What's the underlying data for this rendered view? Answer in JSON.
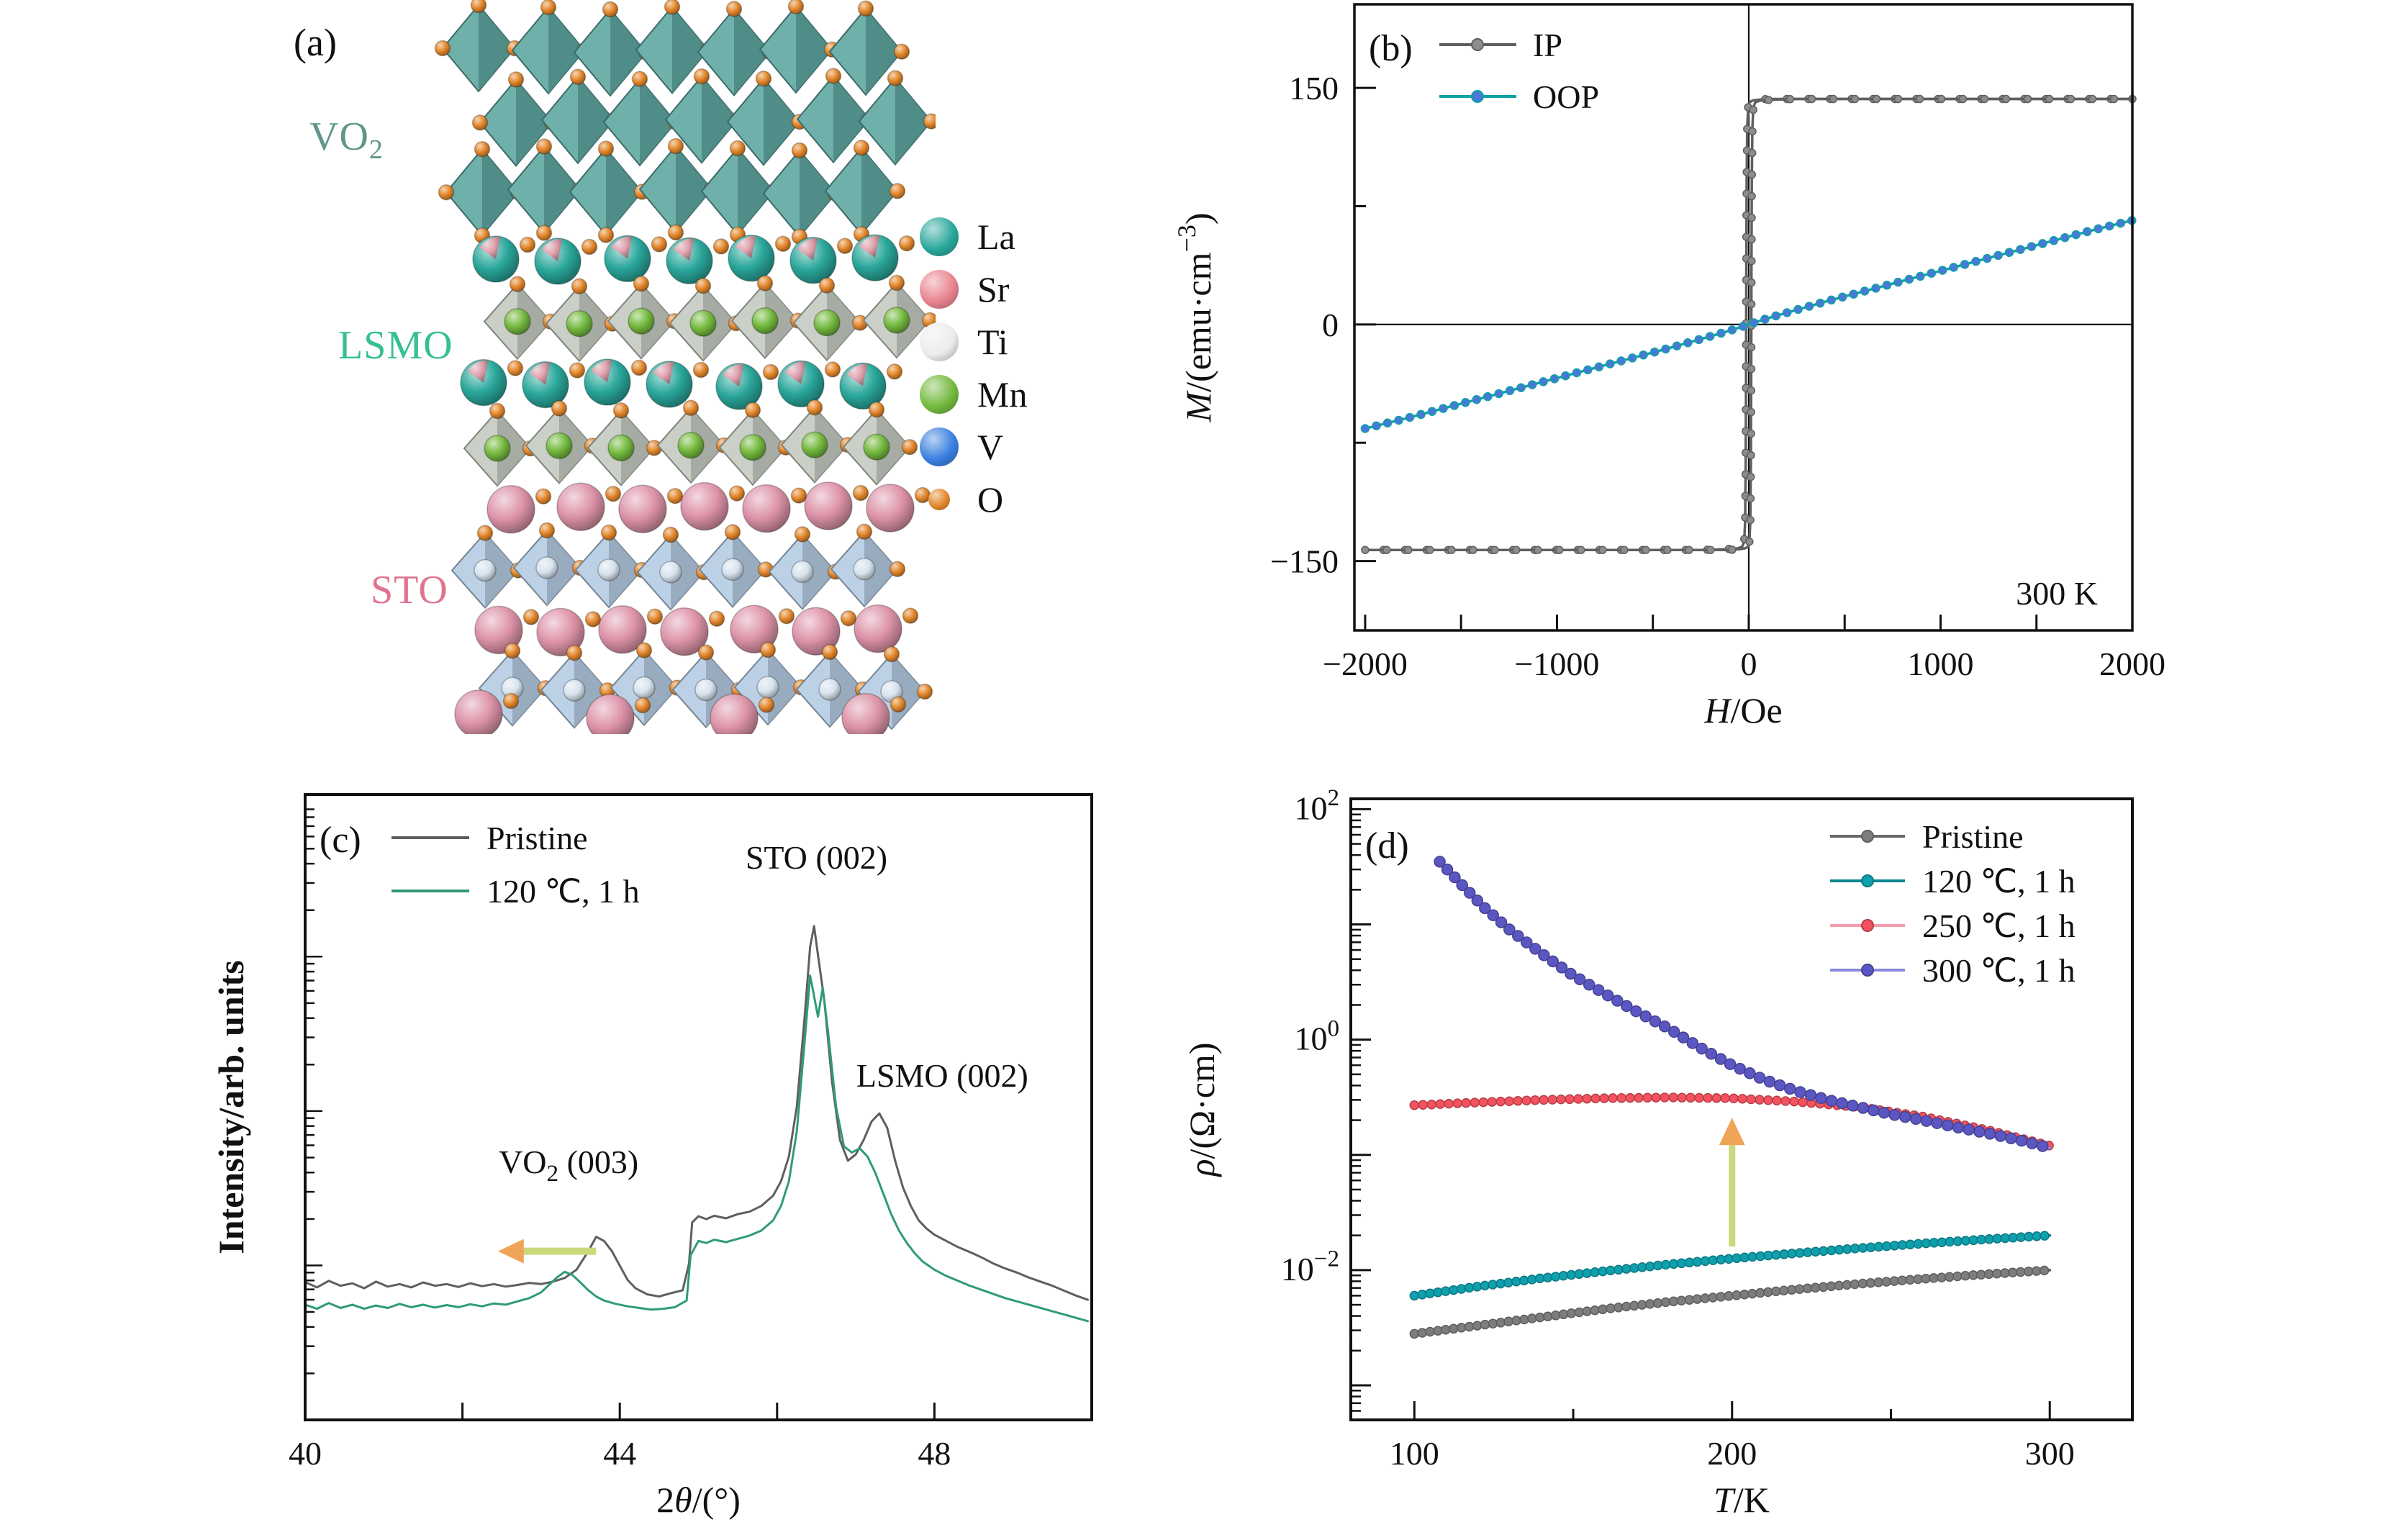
{
  "panel_a": {
    "label": "(a)",
    "layers": [
      {
        "label_main": "VO",
        "label_sub": "2",
        "color": "#5f958b"
      },
      {
        "label_main": "LSMO",
        "label_sub": "",
        "color": "#35bf94"
      },
      {
        "label_main": "STO",
        "label_sub": "",
        "color": "#e0748f"
      }
    ],
    "legend": [
      {
        "label": "La",
        "color": "#2aa79b"
      },
      {
        "label": "Sr",
        "color": "#e8838f"
      },
      {
        "label": "Ti",
        "color": "#ececec"
      },
      {
        "label": "Mn",
        "color": "#74b93e"
      },
      {
        "label": "V",
        "color": "#3a7fe0"
      },
      {
        "label": "O",
        "color": "#e2862a"
      }
    ],
    "structure_colors": {
      "vo2_octahedra": "#5ba5a0",
      "lsmo_octahedra": "#c3cabf",
      "sto_octahedra": "#b3cbe2",
      "la_sphere": "#2aa79b",
      "la_patch": "#e89aa8",
      "sr_sphere": "#dd93a8",
      "mn_sphere": "#74b93e",
      "ti_sphere": "#d7e3ee",
      "o_sphere": "#e2862a"
    }
  },
  "chart_data": [
    {
      "id": "b",
      "type": "line",
      "panel_label": "(b)",
      "xlabel_parts": [
        {
          "t": "H",
          "italic": true
        },
        {
          "t": "/Oe"
        }
      ],
      "ylabel_parts": [
        {
          "t": "M",
          "italic": true
        },
        {
          "t": "/(emu·cm"
        },
        {
          "t": "-3",
          "sup": true
        },
        {
          "t": ")"
        }
      ],
      "xlim": [
        -2056,
        2000
      ],
      "ylim": [
        -194,
        203
      ],
      "xticks": [
        -2000,
        -1000,
        0,
        1000,
        2000
      ],
      "xticks_minor": [
        -1500,
        -500,
        500,
        1500
      ],
      "yticks": [
        -150,
        0,
        150
      ],
      "yticks_minor": [
        -75,
        75
      ],
      "origin_lines": true,
      "annotation": {
        "text": "300 K"
      },
      "legend_position": "top-left",
      "series": [
        {
          "name": "IP",
          "color": "#5f5f5f",
          "marker_fill": "#8d8d8d",
          "marker_r": 5,
          "marker_step": 30,
          "branches": [
            [
              [
                2000,
                143
              ],
              [
                1600,
                143
              ],
              [
                1200,
                143
              ],
              [
                800,
                143
              ],
              [
                400,
                143
              ],
              [
                200,
                143
              ],
              [
                100,
                143
              ],
              [
                50,
                142.5
              ],
              [
                20,
                142
              ],
              [
                5,
                141
              ],
              [
                -3,
                138
              ],
              [
                -8,
                125
              ],
              [
                -11,
                90
              ],
              [
                -13,
                30
              ],
              [
                -14,
                -30
              ],
              [
                -16,
                -90
              ],
              [
                -19,
                -125
              ],
              [
                -24,
                -138
              ],
              [
                -35,
                -141
              ],
              [
                -60,
                -142
              ],
              [
                -120,
                -142.5
              ],
              [
                -250,
                -143
              ],
              [
                -500,
                -143
              ],
              [
                -1000,
                -143
              ],
              [
                -1500,
                -143
              ],
              [
                -2000,
                -143
              ]
            ],
            [
              [
                -2000,
                -143
              ],
              [
                -1600,
                -143
              ],
              [
                -1200,
                -143
              ],
              [
                -800,
                -143
              ],
              [
                -400,
                -143
              ],
              [
                -200,
                -143
              ],
              [
                -100,
                -143
              ],
              [
                -50,
                -142.5
              ],
              [
                -20,
                -142
              ],
              [
                -5,
                -141
              ],
              [
                3,
                -138
              ],
              [
                8,
                -125
              ],
              [
                11,
                -90
              ],
              [
                13,
                -30
              ],
              [
                14,
                30
              ],
              [
                16,
                90
              ],
              [
                19,
                125
              ],
              [
                24,
                138
              ],
              [
                35,
                141
              ],
              [
                60,
                142
              ],
              [
                120,
                142.5
              ],
              [
                250,
                143
              ],
              [
                500,
                143
              ],
              [
                1000,
                143
              ],
              [
                1500,
                143
              ],
              [
                2000,
                143
              ]
            ]
          ]
        },
        {
          "name": "OOP",
          "color": "#0fa3a3",
          "marker_fill": "#4679d8",
          "marker_r": 5.5,
          "marker_step": 16,
          "branches": [
            [
              [
                -2000,
                -66
              ],
              [
                -1800,
                -60
              ],
              [
                -1600,
                -53.5
              ],
              [
                -1400,
                -47
              ],
              [
                -1200,
                -40.5
              ],
              [
                -1000,
                -34
              ],
              [
                -800,
                -27.5
              ],
              [
                -600,
                -21
              ],
              [
                -400,
                -14.5
              ],
              [
                -300,
                -11
              ],
              [
                -200,
                -7.5
              ],
              [
                -100,
                -4
              ],
              [
                -50,
                -2
              ],
              [
                0,
                0
              ],
              [
                50,
                2
              ],
              [
                100,
                4
              ],
              [
                200,
                7.5
              ],
              [
                300,
                11
              ],
              [
                400,
                14.5
              ],
              [
                600,
                21
              ],
              [
                800,
                27.5
              ],
              [
                1000,
                34
              ],
              [
                1200,
                40.5
              ],
              [
                1400,
                47
              ],
              [
                1600,
                53.5
              ],
              [
                1800,
                60
              ],
              [
                2000,
                66
              ]
            ]
          ]
        }
      ]
    },
    {
      "id": "c",
      "type": "line",
      "panel_label": "(c)",
      "xlabel_parts": [
        {
          "t": "2"
        },
        {
          "t": "θ",
          "italic": true
        },
        {
          "t": "/(°)"
        }
      ],
      "ylabel": "Intensity/arb. units",
      "xlim": [
        40,
        50
      ],
      "ylim": [
        -20,
        132
      ],
      "xticks": [
        40,
        44,
        48
      ],
      "xticks_minor": [
        42,
        46
      ],
      "log_minor_yticks": true,
      "annotations": [
        {
          "parts": [
            {
              "t": "STO (002)"
            }
          ],
          "x": 46.5,
          "y": 114
        },
        {
          "parts": [
            {
              "t": "LSMO (002)"
            }
          ],
          "x": 48.1,
          "y": 61
        },
        {
          "parts": [
            {
              "t": "VO"
            },
            {
              "t": "2",
              "sub": true
            },
            {
              "t": " (003)"
            }
          ],
          "x": 43.35,
          "y": 40
        }
      ],
      "arrow": {
        "x_from": 43.7,
        "x_to": 42.45,
        "y": 21,
        "stem_color": "#ccd87c",
        "head_color": "#f0a458"
      },
      "legend_position": "top-left",
      "series": [
        {
          "name": "Pristine",
          "color": "#5f5f5f",
          "x": [
            40.0,
            40.15,
            40.3,
            40.45,
            40.6,
            40.75,
            40.9,
            41.05,
            41.2,
            41.35,
            41.5,
            41.65,
            41.8,
            41.95,
            42.1,
            42.25,
            42.4,
            42.55,
            42.7,
            42.85,
            43.0,
            43.15,
            43.3,
            43.45,
            43.6,
            43.7,
            43.8,
            43.9,
            44.0,
            44.1,
            44.2,
            44.35,
            44.5,
            44.65,
            44.8,
            44.88,
            44.92,
            45.0,
            45.1,
            45.2,
            45.35,
            45.5,
            45.65,
            45.8,
            45.95,
            46.05,
            46.15,
            46.25,
            46.35,
            46.42,
            46.47,
            46.52,
            46.6,
            46.7,
            46.8,
            46.9,
            47.0,
            47.1,
            47.2,
            47.3,
            47.4,
            47.5,
            47.6,
            47.7,
            47.8,
            47.9,
            48.0,
            48.15,
            48.3,
            48.45,
            48.6,
            48.75,
            48.9,
            49.05,
            49.2,
            49.35,
            49.5,
            49.65,
            49.8,
            49.95
          ],
          "y": [
            13.5,
            12.2,
            13.8,
            12.6,
            13.2,
            12.0,
            13.6,
            12.4,
            13.0,
            12.2,
            13.4,
            12.6,
            13.0,
            12.3,
            13.2,
            12.5,
            13.0,
            12.4,
            12.8,
            13.3,
            13.0,
            13.6,
            14.5,
            16.5,
            21.0,
            24.5,
            23.5,
            21.0,
            17.5,
            14.0,
            12.0,
            10.5,
            10.0,
            10.8,
            11.5,
            18.0,
            28.0,
            29.5,
            28.8,
            29.6,
            29.0,
            30.0,
            30.6,
            32.0,
            34.5,
            38.0,
            44.0,
            56.0,
            78.0,
            95.0,
            100.0,
            93.0,
            82.0,
            62.0,
            48.0,
            43.0,
            44.5,
            48.0,
            52.5,
            54.5,
            51.0,
            43.0,
            36.5,
            32.0,
            28.5,
            26.5,
            25.0,
            23.5,
            22.0,
            20.8,
            19.5,
            18.0,
            16.8,
            15.8,
            14.6,
            13.6,
            12.6,
            11.4,
            10.2,
            9.2
          ]
        },
        {
          "name": "120 ℃, 1 h",
          "color": "#2f9b77",
          "x": [
            40.0,
            40.15,
            40.3,
            40.45,
            40.6,
            40.75,
            40.9,
            41.05,
            41.2,
            41.35,
            41.5,
            41.65,
            41.8,
            41.95,
            42.1,
            42.25,
            42.4,
            42.55,
            42.7,
            42.85,
            43.0,
            43.1,
            43.2,
            43.3,
            43.4,
            43.5,
            43.6,
            43.7,
            43.8,
            43.95,
            44.1,
            44.25,
            44.4,
            44.55,
            44.7,
            44.85,
            44.9,
            45.0,
            45.1,
            45.2,
            45.35,
            45.5,
            45.65,
            45.8,
            45.95,
            46.05,
            46.15,
            46.25,
            46.35,
            46.42,
            46.47,
            46.52,
            46.58,
            46.65,
            46.75,
            46.85,
            46.95,
            47.05,
            47.15,
            47.25,
            47.35,
            47.45,
            47.55,
            47.65,
            47.75,
            47.85,
            48.0,
            48.15,
            48.3,
            48.45,
            48.6,
            48.75,
            48.9,
            49.05,
            49.2,
            49.35,
            49.5,
            49.65,
            49.8,
            49.95
          ],
          "y": [
            8.0,
            7.0,
            8.4,
            7.2,
            8.0,
            7.0,
            7.8,
            7.2,
            8.2,
            7.4,
            8.0,
            7.3,
            7.9,
            7.4,
            8.1,
            7.6,
            8.3,
            8.0,
            8.8,
            9.6,
            11.0,
            12.8,
            14.6,
            16.0,
            15.2,
            13.4,
            11.5,
            10.0,
            9.0,
            8.2,
            7.6,
            7.2,
            6.8,
            7.0,
            7.4,
            9.0,
            20.0,
            23.5,
            23.0,
            23.8,
            23.2,
            24.0,
            24.8,
            26.0,
            28.5,
            32.0,
            38.0,
            50.0,
            72.0,
            88.0,
            83.0,
            78.0,
            85.0,
            74.0,
            56.0,
            46.5,
            45.0,
            46.0,
            44.0,
            40.0,
            35.0,
            30.0,
            26.0,
            23.0,
            20.5,
            18.5,
            16.5,
            15.0,
            13.8,
            12.6,
            11.6,
            10.6,
            9.6,
            8.8,
            8.0,
            7.2,
            6.4,
            5.6,
            4.8,
            4.0
          ]
        }
      ]
    },
    {
      "id": "d",
      "type": "line",
      "yscale": "log",
      "panel_label": "(d)",
      "xlabel_parts": [
        {
          "t": "T",
          "italic": true
        },
        {
          "t": "/K"
        }
      ],
      "ylabel_parts": [
        {
          "t": "ρ",
          "italic": true
        },
        {
          "t": "/(Ω·cm)"
        }
      ],
      "xlim": [
        80,
        326
      ],
      "ylim_log": [
        -3.3,
        2.09
      ],
      "xticks": [
        100,
        200,
        300
      ],
      "xticks_minor": [
        150,
        250
      ],
      "ytick_exponents": [
        "2",
        "0",
        "-2"
      ],
      "arrow": {
        "x": 200,
        "y_from": 0.016,
        "y_to": 0.21,
        "stem_color": "#ccd87c",
        "head_color": "#f0a458"
      },
      "legend_position": "top-right",
      "series": [
        {
          "name": "Pristine",
          "color": "#6a6a6a",
          "marker_fill": "#7d7d7d",
          "marker_r": 6,
          "marker_step": 11,
          "x": [
            100,
            120,
            140,
            160,
            180,
            200,
            220,
            240,
            260,
            280,
            300
          ],
          "y": [
            0.0028,
            0.0033,
            0.0039,
            0.0046,
            0.0053,
            0.006,
            0.0068,
            0.0076,
            0.0084,
            0.0092,
            0.01
          ]
        },
        {
          "name": "120 ℃, 1 h",
          "color": "#0e8691",
          "marker_fill": "#0fa0ad",
          "marker_r": 6,
          "marker_step": 11,
          "x": [
            100,
            120,
            140,
            160,
            180,
            200,
            220,
            240,
            260,
            280,
            300
          ],
          "y": [
            0.006,
            0.0072,
            0.0085,
            0.0098,
            0.0112,
            0.0126,
            0.014,
            0.0155,
            0.017,
            0.0185,
            0.02
          ]
        },
        {
          "name": "250 ℃, 1 h",
          "color": "#f49dac",
          "marker_fill": "#f4525f",
          "marker_r": 6,
          "marker_step": 12,
          "x": [
            100,
            120,
            140,
            160,
            180,
            200,
            220,
            240,
            260,
            280,
            300
          ],
          "y": [
            0.27,
            0.285,
            0.3,
            0.31,
            0.315,
            0.31,
            0.29,
            0.26,
            0.215,
            0.165,
            0.12
          ]
        },
        {
          "name": "300 ℃, 1 h",
          "color": "#8a88dc",
          "marker_fill": "#5b57c2",
          "marker_r": 7.5,
          "marker_step": 15,
          "x": [
            108,
            115,
            122,
            130,
            140,
            150,
            160,
            170,
            180,
            190,
            200,
            210,
            220,
            230,
            240,
            250,
            260,
            270,
            280,
            290,
            300
          ],
          "y": [
            35,
            22,
            14,
            9.0,
            5.6,
            3.6,
            2.5,
            1.75,
            1.25,
            0.85,
            0.6,
            0.45,
            0.36,
            0.3,
            0.26,
            0.225,
            0.2,
            0.175,
            0.155,
            0.135,
            0.115
          ]
        }
      ]
    }
  ]
}
